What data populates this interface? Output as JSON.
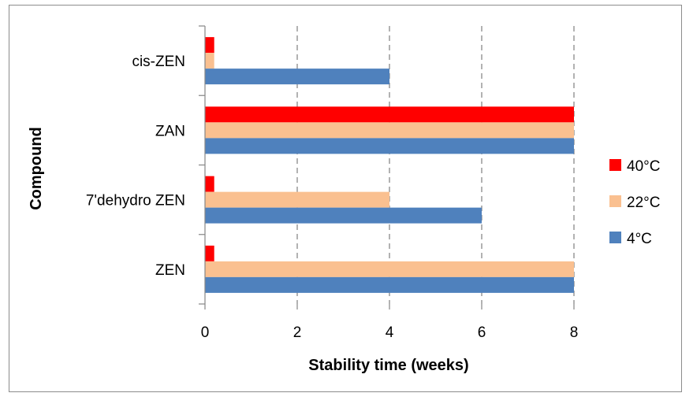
{
  "chart_data": {
    "type": "bar",
    "orientation": "horizontal",
    "categories": [
      "cis-ZEN",
      "ZAN",
      "7'dehydro ZEN",
      "ZEN"
    ],
    "series": [
      {
        "name": "40°C",
        "color": "#ff0000",
        "values": [
          0.2,
          8,
          0.2,
          0.2
        ]
      },
      {
        "name": "22°C",
        "color": "#fac090",
        "values": [
          0.2,
          8,
          4,
          8
        ]
      },
      {
        "name": "4°C",
        "color": "#4f81bd",
        "values": [
          4,
          8,
          6,
          8
        ]
      }
    ],
    "xlabel": "Stability time (weeks)",
    "ylabel": "Compound",
    "xlim": [
      0,
      8
    ],
    "xticks": [
      "0",
      "2",
      "4",
      "6",
      "8"
    ],
    "grid": "vertical dashed",
    "legend_position": "right"
  }
}
